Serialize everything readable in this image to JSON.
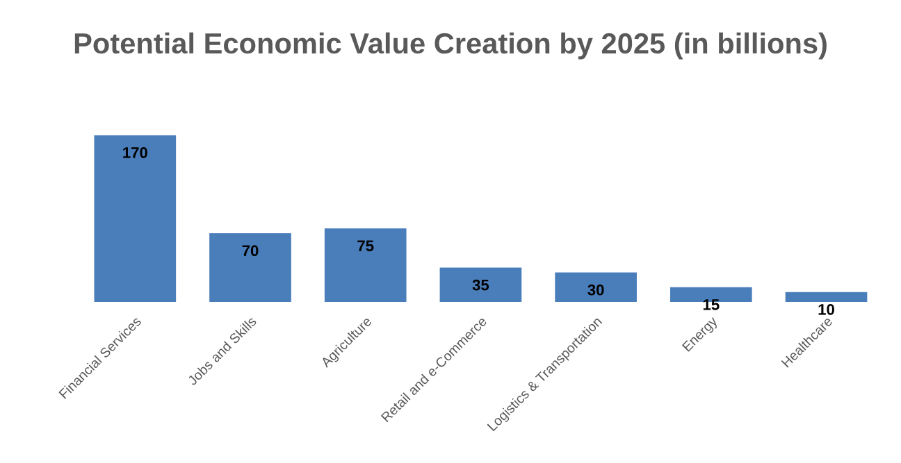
{
  "chart_data": {
    "type": "bar",
    "title": "Potential Economic Value Creation by 2025 (in billions)",
    "categories": [
      "Financial Services",
      "Jobs and Skills",
      "Agriculture",
      "Retail and e-Commerce",
      "Logistics & Transportation",
      "Energy",
      "Healthcare"
    ],
    "values": [
      170,
      70,
      75,
      35,
      30,
      15,
      10
    ],
    "color": "#4a7ebb",
    "data_labels": true,
    "grid": false,
    "legend": false
  }
}
